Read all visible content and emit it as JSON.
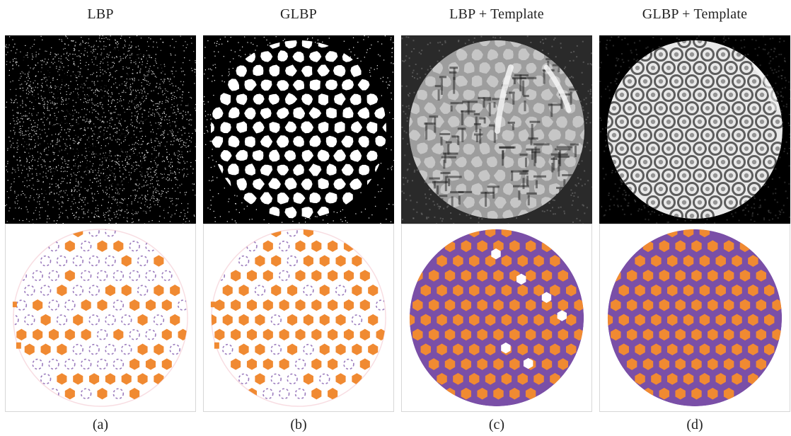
{
  "figure": {
    "columns": [
      {
        "title": "LBP",
        "caption": "(a)"
      },
      {
        "title": "GLBP",
        "caption": "(b)"
      },
      {
        "title": "LBP + Template",
        "caption": "(c)"
      },
      {
        "title": "GLBP + Template",
        "caption": "(d)"
      }
    ],
    "colors": {
      "orange": "#f08a32",
      "purple": "#7a4fa7",
      "white": "#ffffff",
      "black": "#000000",
      "gray": "#9d9d9d",
      "light_pink": "#f7d9df"
    }
  }
}
